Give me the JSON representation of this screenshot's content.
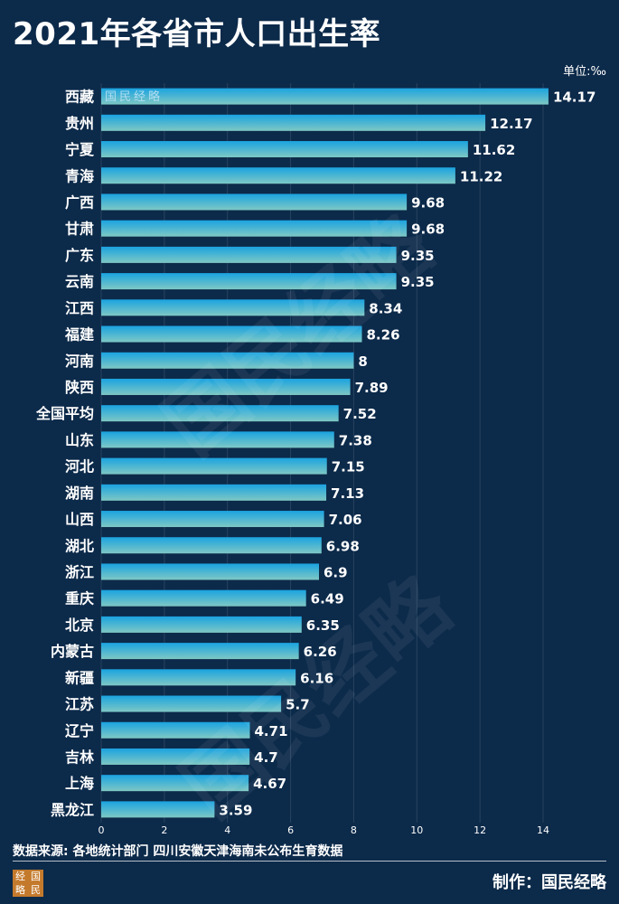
{
  "title": "2021年各省市人口出生率",
  "unit_label": "单位:‰",
  "source": "数据来源: 各地统计部门 四川安徽天津海南未公布生育数据",
  "credit": "制作：国民经略",
  "watermark": "国民经略",
  "logo_chars": [
    "经",
    "国",
    "略",
    "民"
  ],
  "colors": {
    "background": "#0c2a4a",
    "bar_top": "#1aa3e0",
    "bar_bottom": "#7ec8c4"
  },
  "chart_data": {
    "type": "bar",
    "orientation": "horizontal",
    "categories": [
      "西藏",
      "贵州",
      "宁夏",
      "青海",
      "广西",
      "甘肃",
      "广东",
      "云南",
      "江西",
      "福建",
      "河南",
      "陕西",
      "全国平均",
      "山东",
      "河北",
      "湖南",
      "山西",
      "湖北",
      "浙江",
      "重庆",
      "北京",
      "内蒙古",
      "新疆",
      "江苏",
      "辽宁",
      "吉林",
      "上海",
      "黑龙江"
    ],
    "values": [
      14.17,
      12.17,
      11.62,
      11.22,
      9.68,
      9.68,
      9.35,
      9.35,
      8.34,
      8.26,
      8,
      7.89,
      7.52,
      7.38,
      7.15,
      7.13,
      7.06,
      6.98,
      6.9,
      6.49,
      6.35,
      6.26,
      6.16,
      5.7,
      4.71,
      4.7,
      4.67,
      3.59
    ],
    "value_labels": [
      "14.17",
      "12.17",
      "11.62",
      "11.22",
      "9.68",
      "9.68",
      "9.35",
      "9.35",
      "8.34",
      "8.26",
      "8",
      "7.89",
      "7.52",
      "7.38",
      "7.15",
      "7.13",
      "7.06",
      "6.98",
      "6.9",
      "6.49",
      "6.35",
      "6.26",
      "6.16",
      "5.7",
      "4.71",
      "4.7",
      "4.67",
      "3.59"
    ],
    "x_ticks": [
      "0",
      "2",
      "4",
      "6",
      "8",
      "10",
      "12",
      "14"
    ],
    "xlim": [
      0,
      14.2
    ],
    "grid": true
  }
}
